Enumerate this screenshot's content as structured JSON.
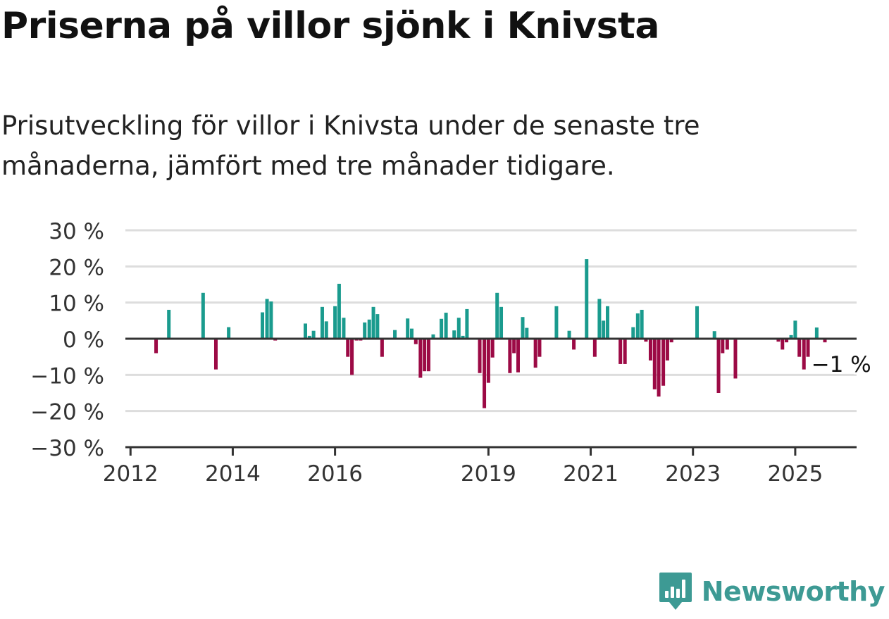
{
  "header": {
    "title": "Priserna på villor sjönk i Knivsta",
    "subtitle": "Prisutveckling för villor i Knivsta under de senaste tre månaderna, jämfört med tre månader tidigare."
  },
  "brand": {
    "name": "Newsworthy",
    "icon": "newsworthy-chart-icon",
    "color": "#3d9a94"
  },
  "chart_data": {
    "type": "bar",
    "x_axis": {
      "ticks": [
        2012,
        2014,
        2016,
        2019,
        2021,
        2023,
        2025
      ],
      "tick_labels": [
        "2012",
        "2014",
        "2016",
        "2019",
        "2021",
        "2023",
        "2025"
      ],
      "range": [
        2011.9,
        2026.2
      ]
    },
    "y_axis": {
      "ticks": [
        30,
        20,
        10,
        0,
        -10,
        -20,
        -30
      ],
      "tick_labels": [
        "30 %",
        "20 %",
        "10 %",
        "0 %",
        "−10 %",
        "−20 %",
        "−30 %"
      ],
      "ylim": [
        -30,
        30
      ]
    },
    "grid": true,
    "colors": {
      "positive": "#1a9b8e",
      "negative": "#9c0a45",
      "grid": "#dddddd",
      "axis": "#333333"
    },
    "annotation": {
      "text": "−1 %",
      "x": 2025.9,
      "y": -7
    },
    "points": [
      {
        "x": 2012.5,
        "y": -4
      },
      {
        "x": 2012.75,
        "y": 8
      },
      {
        "x": 2013.42,
        "y": 12.7
      },
      {
        "x": 2013.67,
        "y": -8.5
      },
      {
        "x": 2013.92,
        "y": 3.2
      },
      {
        "x": 2014.58,
        "y": 7.3
      },
      {
        "x": 2014.67,
        "y": 11
      },
      {
        "x": 2014.75,
        "y": 10.3
      },
      {
        "x": 2014.83,
        "y": -0.5
      },
      {
        "x": 2015.42,
        "y": 4.2
      },
      {
        "x": 2015.5,
        "y": 0.8
      },
      {
        "x": 2015.58,
        "y": 2.2
      },
      {
        "x": 2015.75,
        "y": 8.8
      },
      {
        "x": 2015.83,
        "y": 4.8
      },
      {
        "x": 2016.0,
        "y": 9
      },
      {
        "x": 2016.08,
        "y": 15.2
      },
      {
        "x": 2016.17,
        "y": 5.8
      },
      {
        "x": 2016.25,
        "y": -5
      },
      {
        "x": 2016.33,
        "y": -10
      },
      {
        "x": 2016.42,
        "y": -0.5
      },
      {
        "x": 2016.5,
        "y": -0.5
      },
      {
        "x": 2016.58,
        "y": 4.5
      },
      {
        "x": 2016.67,
        "y": 5.3
      },
      {
        "x": 2016.75,
        "y": 8.8
      },
      {
        "x": 2016.83,
        "y": 6.8
      },
      {
        "x": 2016.92,
        "y": -5
      },
      {
        "x": 2017.17,
        "y": 2.4
      },
      {
        "x": 2017.42,
        "y": 5.6
      },
      {
        "x": 2017.5,
        "y": 2.8
      },
      {
        "x": 2017.58,
        "y": -1.5
      },
      {
        "x": 2017.67,
        "y": -10.8
      },
      {
        "x": 2017.75,
        "y": -9
      },
      {
        "x": 2017.83,
        "y": -9
      },
      {
        "x": 2017.92,
        "y": 1.2
      },
      {
        "x": 2018.08,
        "y": 5.5
      },
      {
        "x": 2018.17,
        "y": 7.2
      },
      {
        "x": 2018.33,
        "y": 2.3
      },
      {
        "x": 2018.42,
        "y": 5.8
      },
      {
        "x": 2018.5,
        "y": 0.8
      },
      {
        "x": 2018.58,
        "y": 8.2
      },
      {
        "x": 2018.83,
        "y": -9.5
      },
      {
        "x": 2018.92,
        "y": -19.2
      },
      {
        "x": 2019.0,
        "y": -12.2
      },
      {
        "x": 2019.08,
        "y": -5.2
      },
      {
        "x": 2019.17,
        "y": 12.7
      },
      {
        "x": 2019.25,
        "y": 8.8
      },
      {
        "x": 2019.42,
        "y": -9.5
      },
      {
        "x": 2019.5,
        "y": -4
      },
      {
        "x": 2019.58,
        "y": -9.3
      },
      {
        "x": 2019.67,
        "y": 6
      },
      {
        "x": 2019.75,
        "y": 3
      },
      {
        "x": 2019.92,
        "y": -8
      },
      {
        "x": 2020.0,
        "y": -5
      },
      {
        "x": 2020.33,
        "y": 9
      },
      {
        "x": 2020.58,
        "y": 2.2
      },
      {
        "x": 2020.67,
        "y": -3
      },
      {
        "x": 2020.92,
        "y": 22
      },
      {
        "x": 2021.08,
        "y": -5
      },
      {
        "x": 2021.17,
        "y": 11
      },
      {
        "x": 2021.25,
        "y": 5
      },
      {
        "x": 2021.33,
        "y": 9
      },
      {
        "x": 2021.58,
        "y": -7
      },
      {
        "x": 2021.67,
        "y": -7
      },
      {
        "x": 2021.83,
        "y": 3.2
      },
      {
        "x": 2021.92,
        "y": 7
      },
      {
        "x": 2022.0,
        "y": 8
      },
      {
        "x": 2022.08,
        "y": -0.8
      },
      {
        "x": 2022.17,
        "y": -6
      },
      {
        "x": 2022.25,
        "y": -14
      },
      {
        "x": 2022.33,
        "y": -16
      },
      {
        "x": 2022.42,
        "y": -13
      },
      {
        "x": 2022.5,
        "y": -6
      },
      {
        "x": 2022.58,
        "y": -1
      },
      {
        "x": 2023.08,
        "y": 9
      },
      {
        "x": 2023.42,
        "y": 2.1
      },
      {
        "x": 2023.5,
        "y": -15
      },
      {
        "x": 2023.58,
        "y": -4
      },
      {
        "x": 2023.67,
        "y": -3
      },
      {
        "x": 2023.83,
        "y": -11
      },
      {
        "x": 2024.67,
        "y": -0.8
      },
      {
        "x": 2024.75,
        "y": -3
      },
      {
        "x": 2024.83,
        "y": -1
      },
      {
        "x": 2024.92,
        "y": 1
      },
      {
        "x": 2025.0,
        "y": 5
      },
      {
        "x": 2025.08,
        "y": -5
      },
      {
        "x": 2025.17,
        "y": -8.5
      },
      {
        "x": 2025.25,
        "y": -5
      },
      {
        "x": 2025.42,
        "y": 3.1
      },
      {
        "x": 2025.58,
        "y": -1
      }
    ]
  }
}
